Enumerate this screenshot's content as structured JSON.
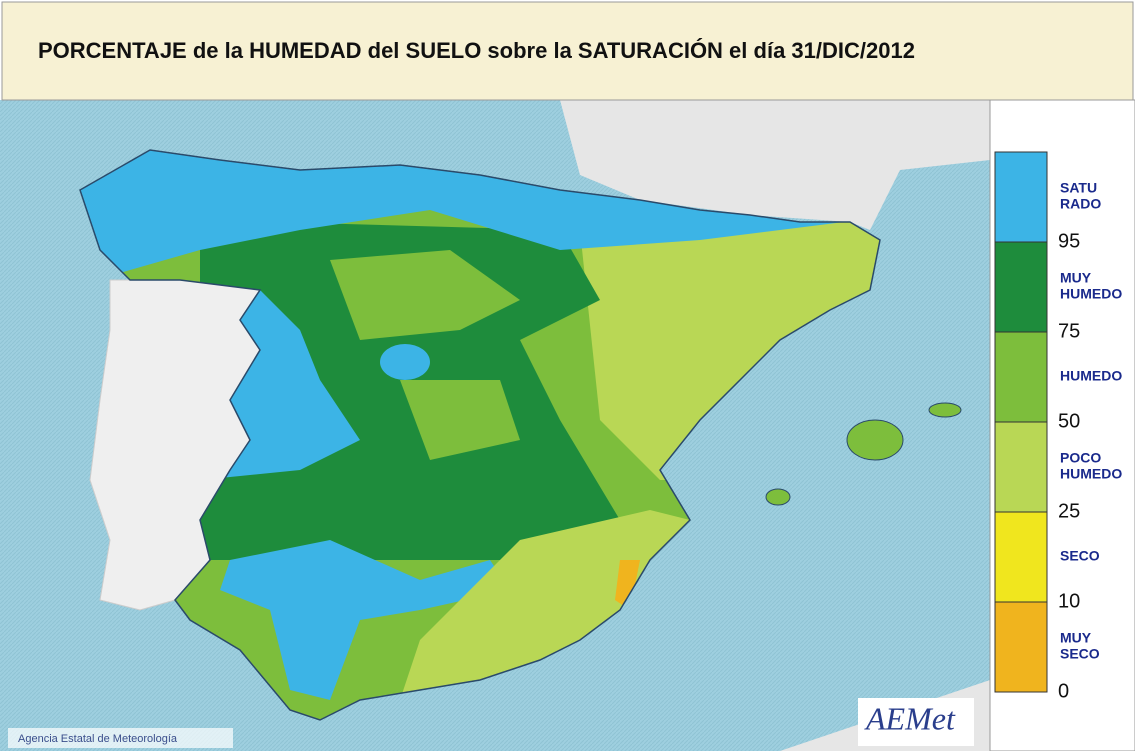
{
  "header": {
    "title": "PORCENTAJE de la HUMEDAD del SUELO sobre la SATURACIÓN el día 31/DIC/2012"
  },
  "legend": {
    "classes": [
      {
        "lines": [
          "SATU",
          "RADO"
        ],
        "color": "#3cb4e6"
      },
      {
        "lines": [
          "MUY",
          "HUMEDO"
        ],
        "color": "#1e8c3c"
      },
      {
        "lines": [
          "HUMEDO"
        ],
        "color": "#7dbe3c"
      },
      {
        "lines": [
          "POCO",
          "HUMEDO"
        ],
        "color": "#b9d755"
      },
      {
        "lines": [
          "SECO"
        ],
        "color": "#f0e61e"
      },
      {
        "lines": [
          "MUY",
          "SECO"
        ],
        "color": "#f0b41e"
      }
    ],
    "thresholds": [
      95,
      75,
      50,
      25,
      10,
      0
    ]
  },
  "credit": "Agencia Estatal de Meteorología",
  "logo": "AEMet"
}
